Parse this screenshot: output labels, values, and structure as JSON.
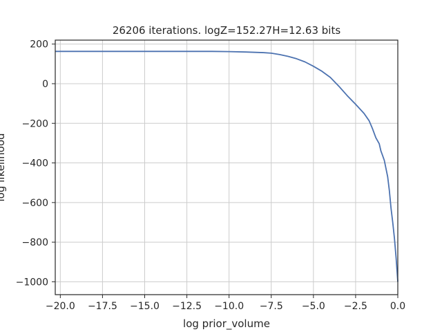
{
  "chart_data": {
    "type": "line",
    "title": "26206 iterations. logZ=152.27H=12.63 bits",
    "xlabel": "log prior_volume",
    "ylabel": "log likelihood",
    "xlim": [
      -20.3,
      0.0
    ],
    "ylim": [
      -1065,
      220
    ],
    "grid": true,
    "xticks": [
      -20.0,
      -17.5,
      -15.0,
      -12.5,
      -10.0,
      -7.5,
      -5.0,
      -2.5,
      0.0
    ],
    "xtick_labels": [
      "−20.0",
      "−17.5",
      "−15.0",
      "−12.5",
      "−10.0",
      "−7.5",
      "−5.0",
      "−2.5",
      "0.0"
    ],
    "yticks": [
      200,
      0,
      -200,
      -400,
      -600,
      -800,
      -1000
    ],
    "ytick_labels": [
      "200",
      "0",
      "−200",
      "−400",
      "−600",
      "−800",
      "−1000"
    ],
    "series": [
      {
        "color": "#4c72b0",
        "x": [
          -20.3,
          -17.5,
          -15.0,
          -12.5,
          -11.0,
          -10.0,
          -9.0,
          -8.0,
          -7.5,
          -7.0,
          -6.5,
          -6.0,
          -5.5,
          -5.0,
          -4.5,
          -4.0,
          -3.5,
          -3.0,
          -2.5,
          -2.0,
          -1.7,
          -1.5,
          -1.3,
          -1.1,
          -1.0,
          -0.9,
          -0.8,
          -0.6,
          -0.5,
          -0.4,
          -0.3,
          -0.2,
          -0.1,
          -0.05,
          0.0
        ],
        "y": [
          163,
          163,
          163,
          163,
          163,
          162,
          160,
          157,
          154,
          147,
          138,
          126,
          110,
          88,
          63,
          32,
          -12,
          -60,
          -104,
          -150,
          -187,
          -227,
          -273,
          -303,
          -340,
          -363,
          -387,
          -470,
          -540,
          -630,
          -700,
          -780,
          -880,
          -940,
          -1000
        ]
      }
    ]
  }
}
